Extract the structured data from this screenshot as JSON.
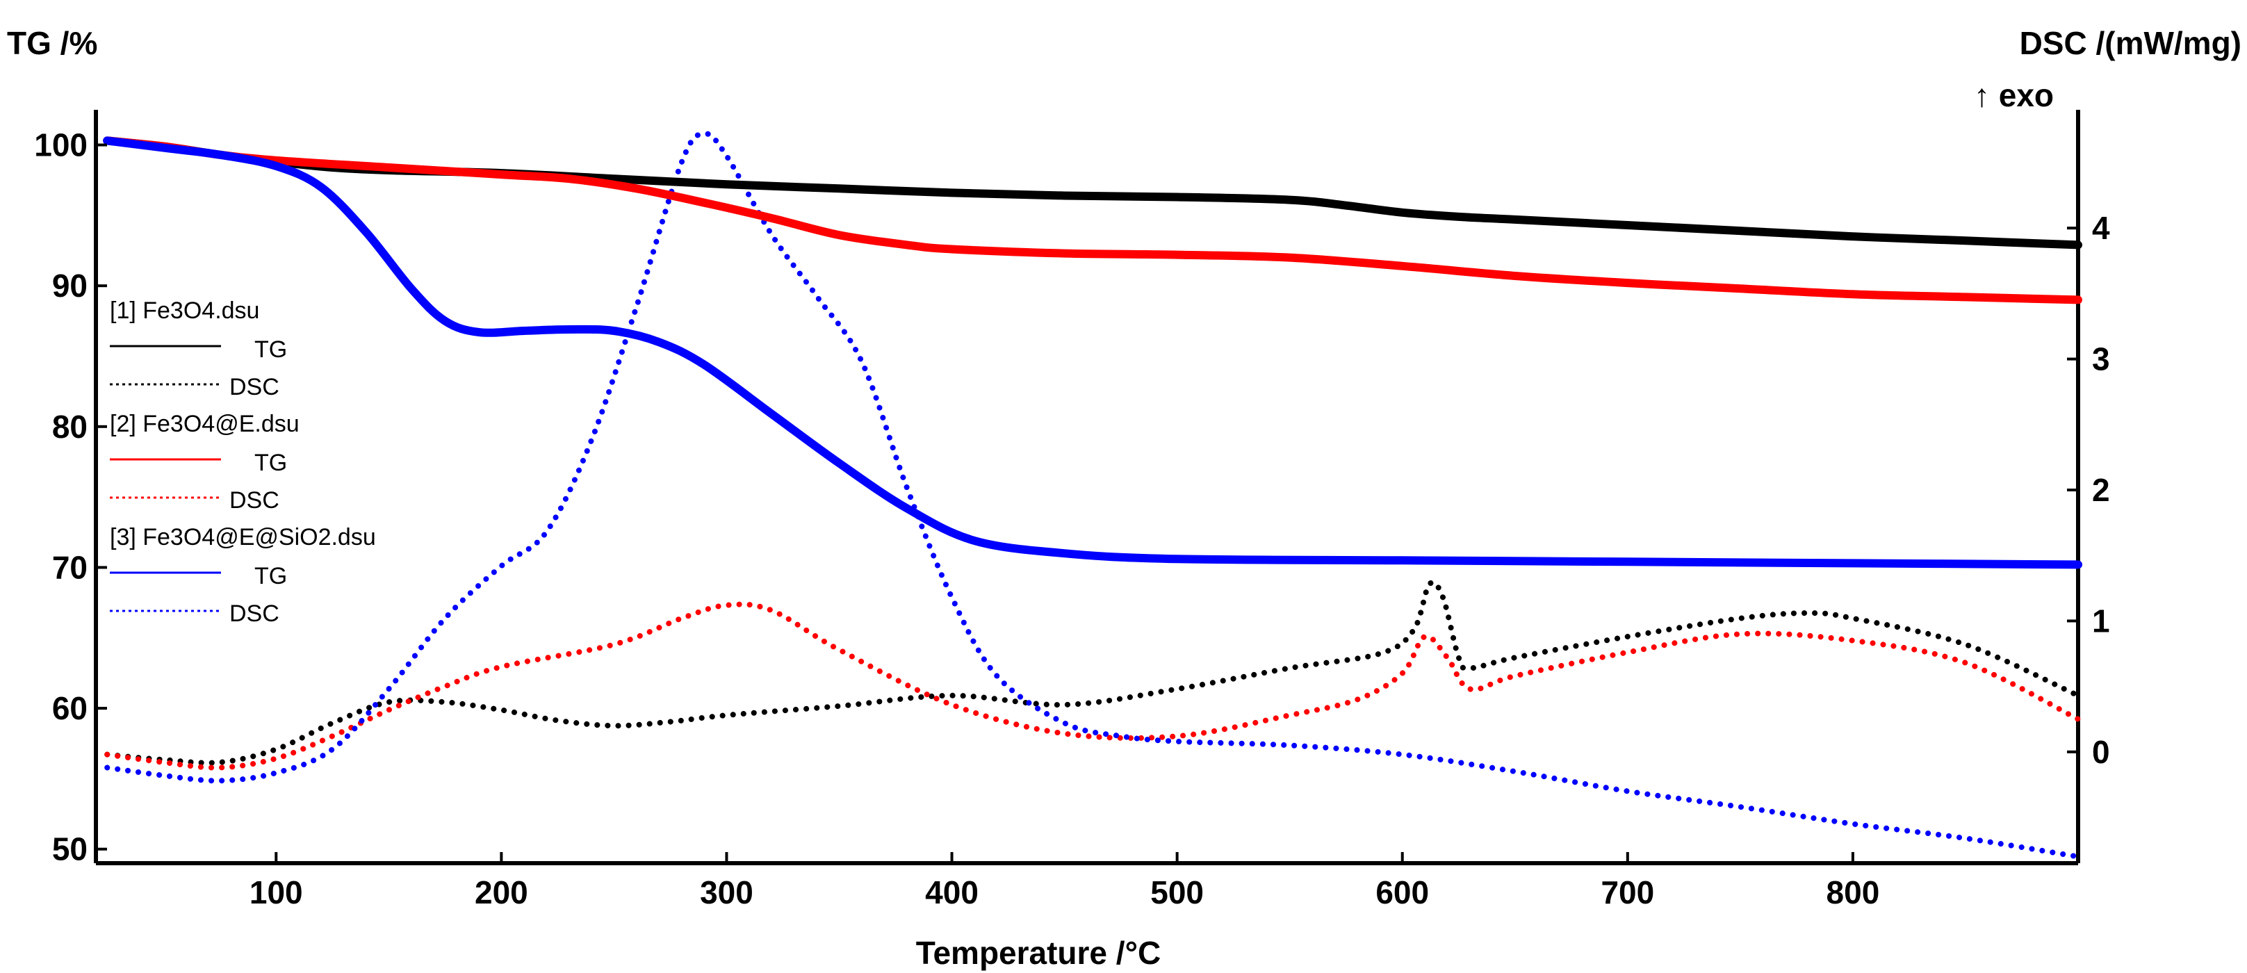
{
  "chart_data": {
    "type": "line",
    "xlabel": "Temperature /°C",
    "ylabel_left": "TG /%",
    "ylabel_right": "DSC /(mW/mg)",
    "right_note": "↑ exo",
    "xlim": [
      20,
      900
    ],
    "ylim_left": [
      49,
      102
    ],
    "ylim_right": [
      -0.85,
      4.85
    ],
    "x_ticks": [
      100,
      200,
      300,
      400,
      500,
      600,
      700,
      800
    ],
    "y_ticks_left": [
      50,
      60,
      70,
      80,
      90,
      100
    ],
    "y_ticks_right": [
      0,
      1,
      2,
      3,
      4
    ],
    "legend": [
      {
        "header": "[1] Fe3O4.dsu",
        "tg_label": "TG",
        "dsc_label": "DSC",
        "color": "#000000"
      },
      {
        "header": "[2] Fe3O4@E.dsu",
        "tg_label": "TG",
        "dsc_label": "DSC",
        "color": "#ff0000"
      },
      {
        "header": "[3] Fe3O4@E@SiO2.dsu",
        "tg_label": "TG",
        "dsc_label": "DSC",
        "color": "#0000ff"
      }
    ],
    "series": [
      {
        "name": "Fe3O4 TG",
        "axis": "left",
        "kind": "TG",
        "color": "#000000",
        "x": [
          25,
          50,
          75,
          100,
          125,
          150,
          200,
          250,
          300,
          350,
          400,
          450,
          500,
          550,
          575,
          600,
          625,
          650,
          700,
          750,
          800,
          850,
          900
        ],
        "y": [
          100.3,
          99.9,
          99.3,
          98.8,
          98.4,
          98.2,
          98.0,
          97.6,
          97.2,
          96.9,
          96.6,
          96.4,
          96.3,
          96.1,
          95.7,
          95.2,
          94.9,
          94.7,
          94.3,
          93.9,
          93.5,
          93.2,
          92.9
        ]
      },
      {
        "name": "Fe3O4@E TG",
        "axis": "left",
        "kind": "TG",
        "color": "#ff0000",
        "x": [
          25,
          50,
          75,
          100,
          150,
          200,
          230,
          260,
          290,
          320,
          350,
          380,
          400,
          450,
          500,
          550,
          600,
          650,
          700,
          750,
          800,
          850,
          900
        ],
        "y": [
          100.3,
          99.9,
          99.3,
          98.9,
          98.4,
          97.9,
          97.6,
          96.9,
          95.9,
          94.8,
          93.6,
          92.9,
          92.6,
          92.3,
          92.2,
          92.0,
          91.4,
          90.7,
          90.2,
          89.8,
          89.4,
          89.2,
          89.0
        ]
      },
      {
        "name": "Fe3O4@E@SiO2 TG",
        "axis": "left",
        "kind": "TG",
        "color": "#0000ff",
        "x": [
          25,
          50,
          75,
          100,
          120,
          140,
          160,
          175,
          190,
          210,
          230,
          250,
          270,
          290,
          320,
          350,
          380,
          410,
          450,
          500,
          600,
          700,
          800,
          900
        ],
        "y": [
          100.3,
          99.8,
          99.3,
          98.5,
          97.0,
          93.8,
          89.8,
          87.5,
          86.7,
          86.8,
          86.9,
          86.8,
          86.0,
          84.4,
          80.9,
          77.4,
          74.2,
          71.9,
          71.0,
          70.6,
          70.5,
          70.4,
          70.3,
          70.2
        ]
      },
      {
        "name": "Fe3O4 DSC",
        "axis": "right",
        "kind": "DSC",
        "color": "#000000",
        "x": [
          25,
          50,
          75,
          100,
          125,
          150,
          175,
          200,
          225,
          250,
          275,
          300,
          350,
          400,
          450,
          500,
          550,
          590,
          605,
          612,
          618,
          625,
          630,
          650,
          700,
          750,
          780,
          800,
          850,
          900
        ],
        "y": [
          -0.02,
          -0.06,
          -0.08,
          0.02,
          0.22,
          0.38,
          0.38,
          0.32,
          0.24,
          0.2,
          0.23,
          0.28,
          0.35,
          0.43,
          0.36,
          0.48,
          0.64,
          0.75,
          0.93,
          1.28,
          1.18,
          0.72,
          0.64,
          0.72,
          0.88,
          1.02,
          1.06,
          1.02,
          0.82,
          0.43
        ]
      },
      {
        "name": "Fe3O4@E DSC",
        "axis": "right",
        "kind": "DSC",
        "color": "#ff0000",
        "x": [
          25,
          50,
          75,
          100,
          125,
          150,
          175,
          200,
          250,
          280,
          300,
          320,
          350,
          400,
          450,
          500,
          550,
          580,
          600,
          610,
          620,
          630,
          650,
          700,
          750,
          800,
          850,
          900
        ],
        "y": [
          -0.02,
          -0.08,
          -0.12,
          -0.05,
          0.12,
          0.32,
          0.5,
          0.65,
          0.82,
          1.02,
          1.12,
          1.08,
          0.78,
          0.36,
          0.14,
          0.12,
          0.28,
          0.4,
          0.6,
          0.88,
          0.72,
          0.48,
          0.58,
          0.76,
          0.9,
          0.85,
          0.68,
          0.25
        ]
      },
      {
        "name": "Fe3O4@E@SiO2 DSC",
        "axis": "right",
        "kind": "DSC",
        "color": "#0000ff",
        "x": [
          25,
          50,
          75,
          100,
          125,
          150,
          175,
          200,
          220,
          240,
          260,
          280,
          290,
          300,
          320,
          340,
          360,
          380,
          400,
          420,
          450,
          475,
          500,
          550,
          600,
          650,
          700,
          750,
          800,
          850,
          900
        ],
        "y": [
          -0.12,
          -0.18,
          -0.22,
          -0.16,
          0.02,
          0.48,
          1.02,
          1.42,
          1.68,
          2.38,
          3.4,
          4.5,
          4.72,
          4.55,
          3.95,
          3.48,
          2.98,
          2.02,
          1.18,
          0.58,
          0.22,
          0.12,
          0.08,
          0.05,
          -0.02,
          -0.15,
          -0.3,
          -0.42,
          -0.55,
          -0.66,
          -0.8
        ]
      }
    ]
  }
}
